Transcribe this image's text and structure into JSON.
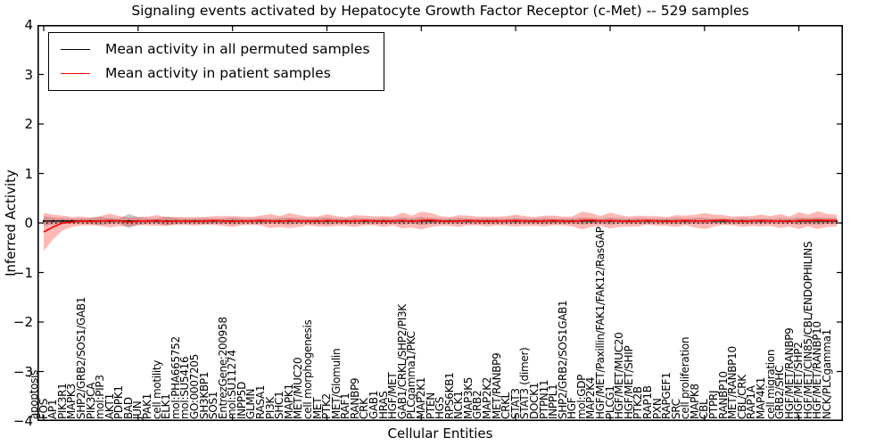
{
  "chart_data": {
    "type": "line",
    "title": "Signaling events activated by Hepatocyte Growth Factor Receptor (c-Met) -- 529 samples",
    "xlabel": "Cellular Entities",
    "ylabel": "Inferred Activity",
    "ylim": [
      -4,
      4
    ],
    "yticklabels": [
      "4",
      "3",
      "2",
      "1",
      "0",
      "−1",
      "−2",
      "−3",
      "−4"
    ],
    "xtick_indices": [
      0,
      10,
      20,
      30,
      40,
      50,
      60,
      70,
      80
    ],
    "grid": false,
    "legend_position": "upper left",
    "zero_reference_line": {
      "style": "dotted",
      "color": "#000000",
      "y": 0
    },
    "categories": [
      "apoptosis",
      "FOS",
      "AP1",
      "PIK3R1",
      "MAPK3",
      "SHP2/GRB2/SOS1/GAB1",
      "PIK3CA",
      "mol:PIP3",
      "AKT1",
      "PDPK1",
      "BAD",
      "JUN",
      "PAK1",
      "cell motility",
      "ELK1",
      "mol:PHA665752",
      "mol:SU5416",
      "GO:0007205",
      "SH3KBP1",
      "SOS1",
      "EntrezGene:200958",
      "mol:SU11274",
      "INPP5D",
      "GLMN",
      "RASA1",
      "PI3K",
      "SHC1",
      "MAPK1",
      "MET/MUC20",
      "cell morphogenesis",
      "MET",
      "PTK2",
      "MET/Glomulin",
      "RAF1",
      "RANBP9",
      "CRK",
      "GAB1",
      "HRAS",
      "HGF/MET",
      "GAB1/CRKL/SHP2/PI3K",
      "PLCgamma1/PKC",
      "MAP2K1",
      "PTEN",
      "HGS",
      "RPS6KB1",
      "NCK1",
      "MAP3K5",
      "GRB2",
      "MAP2K2",
      "MET/RANBP9",
      "CRKL",
      "STAT3",
      "STAT3 (dimer)",
      "DOCK1",
      "PTPN11",
      "INPPL1",
      "SHP2/GRB2/SOS1GAB1",
      "HGF",
      "mol:GDP",
      "MAP2K4",
      "HGF/MET/Paxillin/FAK1/FAK12/RasGAP",
      "PLCG1",
      "HGF/MET/MUC20",
      "HGF/MET/SHIP",
      "PTK2B",
      "RAP1B",
      "PXN",
      "RAPGEF1",
      "SRC",
      "cell proliferation",
      "MAPK8",
      "CBL",
      "PTPRJ",
      "RANBP10",
      "MET/RANBP10",
      "CBL/CRK",
      "RAP1A",
      "MAP4K1",
      "cell migration",
      "GRB2/SHC",
      "HGF/MET/RANBP9",
      "HGF/MET/SHP2",
      "HGF/MET/CIN85/CBL/ENDOPHILINS",
      "HGF/MET/RANBP10",
      "NCK/PLCgamma1"
    ],
    "series": [
      {
        "name": "Mean activity in all permuted samples",
        "color": "#000000",
        "band_color": "rgba(130,130,130,0.45)",
        "values": [
          0.04,
          0.04,
          0.04,
          0.04,
          0.04,
          0.04,
          0.04,
          0.04,
          0.04,
          0.04,
          0.04,
          0.04,
          0.04,
          0.04,
          0.04,
          0.04,
          0.04,
          0.04,
          0.04,
          0.04,
          0.04,
          0.04,
          0.04,
          0.04,
          0.04,
          0.04,
          0.04,
          0.04,
          0.04,
          0.04,
          0.04,
          0.04,
          0.04,
          0.04,
          0.04,
          0.04,
          0.04,
          0.04,
          0.04,
          0.04,
          0.04,
          0.04,
          0.04,
          0.04,
          0.04,
          0.04,
          0.04,
          0.04,
          0.04,
          0.04,
          0.04,
          0.04,
          0.04,
          0.04,
          0.04,
          0.04,
          0.04,
          0.04,
          0.04,
          0.04,
          0.04,
          0.04,
          0.04,
          0.04,
          0.04,
          0.04,
          0.04,
          0.04,
          0.04,
          0.04,
          0.04,
          0.04,
          0.04,
          0.04,
          0.04,
          0.04,
          0.04,
          0.04,
          0.04,
          0.04,
          0.04,
          0.04,
          0.04,
          0.04,
          0.04
        ],
        "band_halfwidth": [
          0.1,
          0.07,
          0.06,
          0.05,
          0.05,
          0.06,
          0.08,
          0.06,
          0.05,
          0.14,
          0.08,
          0.05,
          0.05,
          0.09,
          0.06,
          0.05,
          0.05,
          0.06,
          0.05,
          0.05,
          0.07,
          0.05,
          0.05,
          0.06,
          0.05,
          0.06,
          0.07,
          0.05,
          0.05,
          0.06,
          0.07,
          0.05,
          0.05,
          0.06,
          0.05,
          0.05,
          0.06,
          0.05,
          0.07,
          0.05,
          0.08,
          0.06,
          0.05,
          0.05,
          0.06,
          0.05,
          0.05,
          0.06,
          0.05,
          0.05,
          0.06,
          0.05,
          0.05,
          0.06,
          0.05,
          0.05,
          0.05,
          0.07,
          0.06,
          0.05,
          0.07,
          0.05,
          0.05,
          0.06,
          0.05,
          0.05,
          0.05,
          0.06,
          0.05,
          0.06,
          0.06,
          0.05,
          0.05,
          0.05,
          0.06,
          0.05,
          0.05,
          0.05,
          0.06,
          0.05,
          0.07,
          0.06,
          0.07,
          0.06,
          0.06
        ]
      },
      {
        "name": "Mean activity in patient samples",
        "color": "#ff0000",
        "band_color": "rgba(255,40,30,0.33)",
        "values": [
          -0.18,
          -0.08,
          0.0,
          0.02,
          0.04,
          0.03,
          0.04,
          0.05,
          0.04,
          0.02,
          0.04,
          0.04,
          0.05,
          0.03,
          0.04,
          0.04,
          0.03,
          0.04,
          0.05,
          0.04,
          0.03,
          0.04,
          0.04,
          0.05,
          0.04,
          0.03,
          0.05,
          0.04,
          0.04,
          0.03,
          0.05,
          0.04,
          0.03,
          0.04,
          0.05,
          0.04,
          0.03,
          0.04,
          0.05,
          0.03,
          0.05,
          0.06,
          0.04,
          0.03,
          0.04,
          0.05,
          0.04,
          0.03,
          0.04,
          0.04,
          0.05,
          0.04,
          0.03,
          0.04,
          0.05,
          0.04,
          0.03,
          0.05,
          0.06,
          0.04,
          0.05,
          0.04,
          0.03,
          0.04,
          0.05,
          0.04,
          0.03,
          0.04,
          0.05,
          0.04,
          0.04,
          0.05,
          0.06,
          0.04,
          0.03,
          0.04,
          0.05,
          0.04,
          0.04,
          0.03,
          0.05,
          0.05,
          0.06,
          0.05,
          0.05
        ],
        "band_halfwidth": [
          0.38,
          0.25,
          0.15,
          0.1,
          0.09,
          0.08,
          0.1,
          0.14,
          0.1,
          0.09,
          0.08,
          0.09,
          0.11,
          0.09,
          0.08,
          0.08,
          0.09,
          0.08,
          0.09,
          0.1,
          0.11,
          0.09,
          0.08,
          0.1,
          0.14,
          0.11,
          0.15,
          0.12,
          0.09,
          0.1,
          0.13,
          0.1,
          0.09,
          0.12,
          0.1,
          0.09,
          0.11,
          0.09,
          0.16,
          0.12,
          0.18,
          0.14,
          0.1,
          0.09,
          0.12,
          0.1,
          0.09,
          0.1,
          0.09,
          0.1,
          0.12,
          0.1,
          0.09,
          0.11,
          0.1,
          0.09,
          0.1,
          0.18,
          0.14,
          0.1,
          0.16,
          0.12,
          0.1,
          0.11,
          0.09,
          0.1,
          0.09,
          0.12,
          0.1,
          0.13,
          0.16,
          0.12,
          0.1,
          0.09,
          0.11,
          0.1,
          0.12,
          0.1,
          0.14,
          0.1,
          0.17,
          0.12,
          0.18,
          0.13,
          0.12
        ]
      }
    ]
  }
}
